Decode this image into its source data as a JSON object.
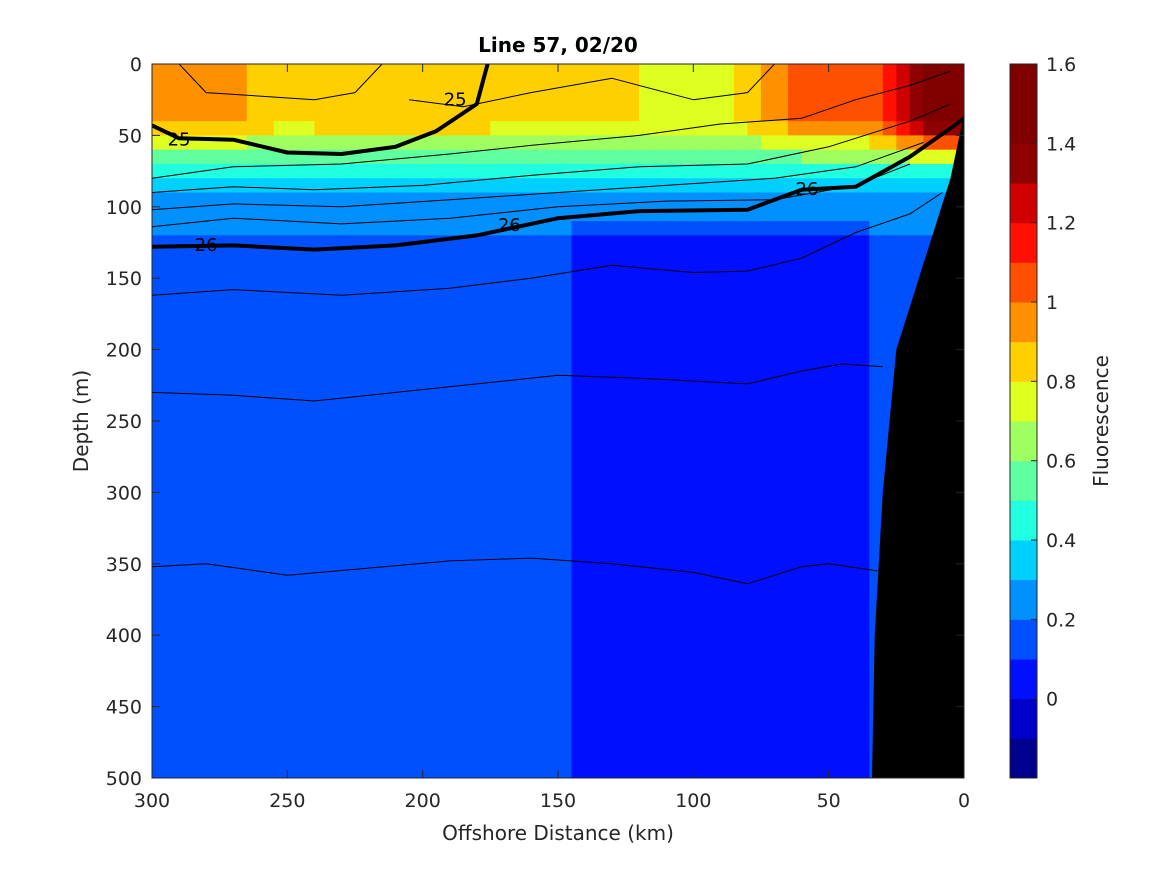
{
  "chart_data": {
    "type": "heatmap",
    "title": "Line 57, 02/20",
    "xlabel": "Offshore Distance (km)",
    "ylabel": "Depth (m)",
    "colorbar_label": "Fluorescence",
    "xlim": [
      300,
      0
    ],
    "x_reversed": true,
    "ylim": [
      0,
      500
    ],
    "y_reversed": true,
    "x_ticks": [
      300,
      250,
      200,
      150,
      100,
      50,
      0
    ],
    "y_ticks": [
      0,
      50,
      100,
      150,
      200,
      250,
      300,
      350,
      400,
      450,
      500
    ],
    "colorbar": {
      "range": [
        -0.2,
        1.6
      ],
      "ticks": [
        0,
        0.2,
        0.4,
        0.6,
        0.8,
        1,
        1.2,
        1.4,
        1.6
      ],
      "tick_labels": [
        "0",
        "0.2",
        "0.4",
        "0.6",
        "0.8",
        "1",
        "1.2",
        "1.4",
        "1.6"
      ],
      "step": 0.1,
      "colors": [
        "#00008f",
        "#0000cc",
        "#0010ff",
        "#0050ff",
        "#0090ff",
        "#00d0ff",
        "#20ffdf",
        "#60ff9f",
        "#a0ff60",
        "#dfff20",
        "#ffd000",
        "#ff9000",
        "#ff5000",
        "#ff1000",
        "#cf0000",
        "#8f0000",
        "#800000",
        "#800000"
      ]
    },
    "fluorescence_field": {
      "comment_levels": "filled contours; values in fluorescence units",
      "surface_layer_0_50m": [
        {
          "x": 280,
          "y": 20,
          "value": 0.95
        },
        {
          "x": 250,
          "y": 20,
          "value": 0.85
        },
        {
          "x": 200,
          "y": 20,
          "value": 0.9
        },
        {
          "x": 150,
          "y": 20,
          "value": 0.8
        },
        {
          "x": 100,
          "y": 20,
          "value": 0.75
        },
        {
          "x": 40,
          "y": 10,
          "value": 1.05
        },
        {
          "x": 5,
          "y": 5,
          "value": 1.5
        }
      ],
      "mixed_layer_60_100m": 0.35,
      "subsurface_100_500m": 0.15,
      "deep_minimum_x_range": [
        145,
        35
      ],
      "deep_minimum_value": 0.05
    },
    "bottom_bathymetry": [
      {
        "x": 0,
        "y": 35
      },
      {
        "x": 5,
        "y": 80
      },
      {
        "x": 15,
        "y": 140
      },
      {
        "x": 25,
        "y": 200
      },
      {
        "x": 30,
        "y": 300
      },
      {
        "x": 33,
        "y": 400
      },
      {
        "x": 34,
        "y": 500
      }
    ],
    "density_contours": [
      {
        "level": 25,
        "labeled": true,
        "bold": true,
        "points": [
          [
            300,
            43
          ],
          [
            290,
            52
          ],
          [
            270,
            53
          ],
          [
            250,
            62
          ],
          [
            230,
            63
          ],
          [
            210,
            58
          ],
          [
            195,
            47
          ],
          [
            180,
            28
          ],
          [
            176,
            0
          ]
        ]
      },
      {
        "level": 26,
        "labeled": true,
        "bold": true,
        "points": [
          [
            300,
            128
          ],
          [
            270,
            127
          ],
          [
            240,
            130
          ],
          [
            210,
            127
          ],
          [
            180,
            120
          ],
          [
            150,
            108
          ],
          [
            120,
            103
          ],
          [
            80,
            102
          ],
          [
            60,
            88
          ],
          [
            40,
            86
          ],
          [
            20,
            65
          ],
          [
            5,
            45
          ],
          [
            0,
            38
          ]
        ]
      },
      {
        "level": null,
        "labeled": false,
        "bold": false,
        "points": [
          [
            290,
            0
          ],
          [
            280,
            20
          ],
          [
            240,
            25
          ],
          [
            225,
            20
          ],
          [
            215,
            0
          ]
        ]
      },
      {
        "level": null,
        "labeled": false,
        "bold": false,
        "points": [
          [
            205,
            25
          ],
          [
            185,
            30
          ],
          [
            160,
            20
          ],
          [
            130,
            10
          ],
          [
            100,
            25
          ],
          [
            80,
            20
          ],
          [
            70,
            0
          ]
        ]
      },
      {
        "level": null,
        "labeled": false,
        "bold": false,
        "points": [
          [
            300,
            80
          ],
          [
            270,
            72
          ],
          [
            230,
            70
          ],
          [
            190,
            63
          ],
          [
            160,
            57
          ],
          [
            120,
            50
          ],
          [
            90,
            42
          ],
          [
            60,
            38
          ],
          [
            40,
            25
          ],
          [
            20,
            15
          ],
          [
            5,
            5
          ]
        ]
      },
      {
        "level": null,
        "labeled": false,
        "bold": false,
        "points": [
          [
            300,
            90
          ],
          [
            270,
            86
          ],
          [
            240,
            88
          ],
          [
            200,
            85
          ],
          [
            160,
            78
          ],
          [
            120,
            72
          ],
          [
            80,
            70
          ],
          [
            50,
            58
          ],
          [
            20,
            40
          ],
          [
            5,
            28
          ]
        ]
      },
      {
        "level": null,
        "labeled": false,
        "bold": false,
        "points": [
          [
            300,
            102
          ],
          [
            270,
            98
          ],
          [
            230,
            100
          ],
          [
            190,
            95
          ],
          [
            150,
            90
          ],
          [
            110,
            85
          ],
          [
            70,
            80
          ],
          [
            40,
            72
          ],
          [
            15,
            55
          ]
        ]
      },
      {
        "level": null,
        "labeled": false,
        "bold": false,
        "points": [
          [
            300,
            114
          ],
          [
            270,
            108
          ],
          [
            230,
            112
          ],
          [
            190,
            108
          ],
          [
            150,
            100
          ],
          [
            110,
            96
          ],
          [
            70,
            95
          ],
          [
            40,
            85
          ],
          [
            20,
            70
          ]
        ]
      },
      {
        "level": null,
        "labeled": false,
        "bold": false,
        "points": [
          [
            300,
            162
          ],
          [
            270,
            158
          ],
          [
            230,
            162
          ],
          [
            190,
            157
          ],
          [
            160,
            150
          ],
          [
            130,
            141
          ],
          [
            100,
            146
          ],
          [
            80,
            145
          ],
          [
            60,
            136
          ],
          [
            40,
            118
          ],
          [
            20,
            105
          ],
          [
            8,
            90
          ]
        ]
      },
      {
        "level": null,
        "labeled": false,
        "bold": false,
        "points": [
          [
            300,
            230
          ],
          [
            270,
            232
          ],
          [
            240,
            236
          ],
          [
            210,
            230
          ],
          [
            180,
            224
          ],
          [
            150,
            218
          ],
          [
            120,
            220
          ],
          [
            80,
            224
          ],
          [
            60,
            215
          ],
          [
            45,
            210
          ],
          [
            30,
            212
          ]
        ]
      },
      {
        "level": null,
        "labeled": false,
        "bold": false,
        "points": [
          [
            300,
            352
          ],
          [
            280,
            350
          ],
          [
            250,
            358
          ],
          [
            220,
            353
          ],
          [
            190,
            348
          ],
          [
            160,
            346
          ],
          [
            130,
            350
          ],
          [
            100,
            356
          ],
          [
            80,
            364
          ],
          [
            60,
            352
          ],
          [
            50,
            350
          ],
          [
            32,
            355
          ]
        ]
      }
    ],
    "contour_labels": [
      {
        "text": "25",
        "x": 290,
        "y": 52
      },
      {
        "text": "25",
        "x": 188,
        "y": 24
      },
      {
        "text": "26",
        "x": 280,
        "y": 126
      },
      {
        "text": "26",
        "x": 168,
        "y": 112
      },
      {
        "text": "26",
        "x": 58,
        "y": 87
      }
    ]
  }
}
